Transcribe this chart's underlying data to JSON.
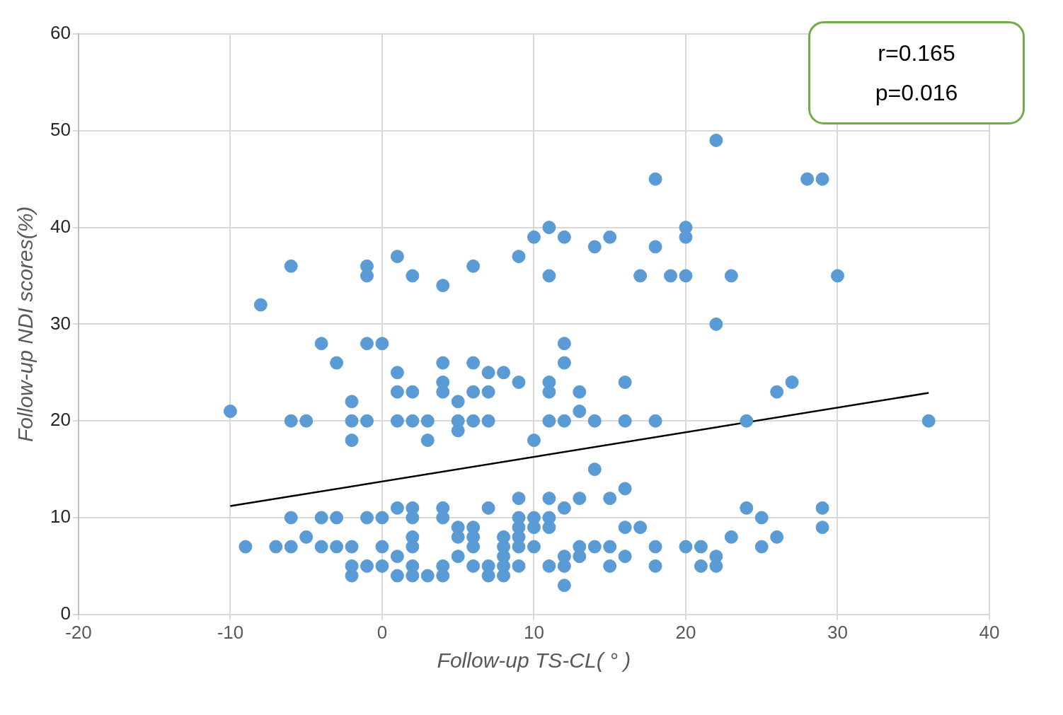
{
  "chart_data": {
    "type": "scatter",
    "xlabel": "Follow-up TS-CL( ° )",
    "ylabel": "Follow-up NDI scores(%)",
    "xlim": [
      -20,
      40
    ],
    "xticks": [
      -20,
      -10,
      0,
      10,
      20,
      30,
      40
    ],
    "ylim": [
      0,
      60
    ],
    "yticks": [
      0,
      10,
      20,
      30,
      40,
      50,
      60
    ],
    "grid": true,
    "legend": false,
    "marker": "circle",
    "annotations": [
      "r=0.165",
      "p=0.016"
    ],
    "series": [
      {
        "color": "#5b9bd5",
        "x": [
          -10,
          -9,
          -8,
          -7,
          -6,
          -6,
          -6,
          -6,
          -5,
          -5,
          -4,
          -4,
          -4,
          -3,
          -3,
          -3,
          -2,
          -2,
          -2,
          -2,
          -2,
          -2,
          -1,
          -1,
          -1,
          -1,
          -1,
          -1,
          0,
          0,
          0,
          0,
          1,
          1,
          1,
          1,
          1,
          1,
          1,
          2,
          2,
          2,
          2,
          2,
          2,
          2,
          2,
          2,
          3,
          3,
          3,
          4,
          4,
          4,
          4,
          4,
          4,
          4,
          4,
          5,
          5,
          5,
          5,
          5,
          5,
          6,
          6,
          6,
          6,
          6,
          6,
          6,
          6,
          7,
          7,
          7,
          7,
          7,
          7,
          8,
          8,
          8,
          8,
          8,
          8,
          9,
          9,
          9,
          9,
          9,
          9,
          9,
          9,
          10,
          10,
          10,
          10,
          10,
          11,
          11,
          11,
          11,
          11,
          11,
          11,
          11,
          11,
          12,
          12,
          12,
          12,
          12,
          12,
          12,
          12,
          13,
          13,
          13,
          13,
          13,
          14,
          14,
          14,
          14,
          15,
          15,
          15,
          15,
          16,
          16,
          16,
          16,
          16,
          17,
          17,
          18,
          18,
          18,
          18,
          18,
          19,
          20,
          20,
          20,
          20,
          21,
          21,
          22,
          22,
          22,
          22,
          23,
          23,
          24,
          24,
          25,
          25,
          26,
          26,
          27,
          28,
          29,
          29,
          29,
          30,
          36
        ],
        "values": [
          21,
          7,
          32,
          7,
          36,
          20,
          10,
          7,
          20,
          8,
          28,
          10,
          7,
          26,
          10,
          7,
          22,
          20,
          18,
          7,
          5,
          4,
          36,
          35,
          28,
          20,
          10,
          5,
          28,
          10,
          7,
          5,
          37,
          25,
          23,
          20,
          11,
          6,
          4,
          35,
          23,
          20,
          11,
          10,
          8,
          7,
          5,
          4,
          20,
          18,
          4,
          34,
          26,
          24,
          23,
          11,
          10,
          5,
          4,
          22,
          20,
          19,
          9,
          8,
          6,
          36,
          26,
          23,
          20,
          9,
          8,
          7,
          5,
          25,
          23,
          20,
          11,
          5,
          4,
          25,
          8,
          7,
          6,
          5,
          4,
          37,
          24,
          12,
          10,
          9,
          8,
          7,
          5,
          39,
          18,
          10,
          9,
          7,
          40,
          35,
          24,
          23,
          20,
          12,
          10,
          9,
          5,
          39,
          28,
          26,
          20,
          11,
          6,
          5,
          3,
          23,
          21,
          12,
          7,
          6,
          38,
          20,
          15,
          7,
          39,
          12,
          7,
          5,
          24,
          20,
          13,
          9,
          6,
          35,
          9,
          45,
          38,
          20,
          7,
          5,
          35,
          40,
          39,
          35,
          7,
          7,
          5,
          49,
          30,
          6,
          5,
          35,
          8,
          20,
          11,
          10,
          7,
          23,
          8,
          24,
          45,
          45,
          11,
          9,
          35,
          20
        ]
      },
      {
        "type": "line",
        "color": "#000000",
        "x": [
          -10,
          36
        ],
        "values": [
          11.2,
          22.9
        ],
        "marker": "none"
      }
    ]
  }
}
